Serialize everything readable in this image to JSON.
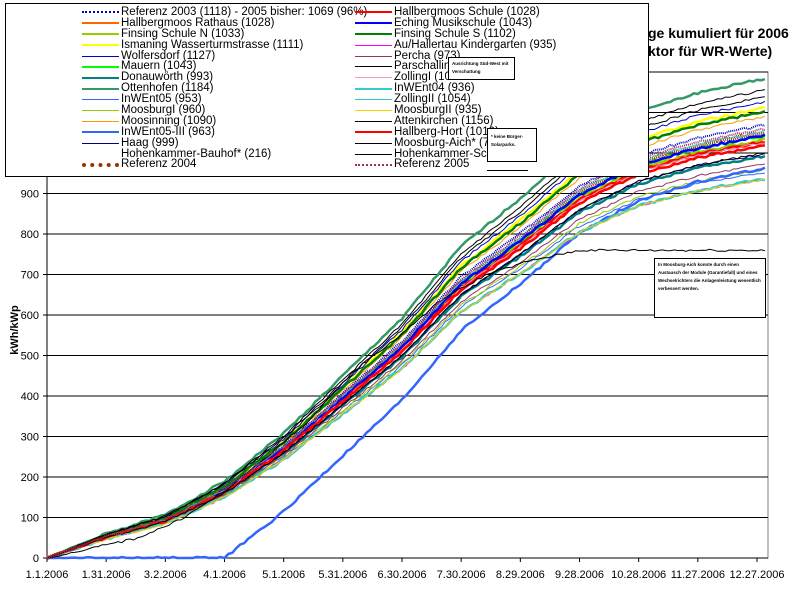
{
  "chart_data": {
    "type": "line",
    "title_visible_part_1": "ge kumuliert für 2006",
    "title_visible_part_2": "ktor für WR-Werte)",
    "ylabel": "kWh/kWp",
    "xlabel": "",
    "ylim": [
      0,
      1200
    ],
    "y_ticks": [
      0,
      100,
      200,
      300,
      400,
      500,
      600,
      700,
      800,
      900
    ],
    "x_tick_labels": [
      "1.1.2006",
      "1.31.2006",
      "3.2.2006",
      "4.1.2006",
      "5.1.2006",
      "5.31.2006",
      "6.30.2006",
      "7.30.2006",
      "8.29.2006",
      "9.28.2006",
      "10.28.2006",
      "11.27.2006",
      "12.27.2006"
    ],
    "x_tick_days": [
      0,
      30,
      60,
      90,
      120,
      150,
      180,
      210,
      240,
      270,
      300,
      330,
      360
    ],
    "grid": "horizontal",
    "legend_placement": "top-left",
    "cumulative_profile_days": [
      0,
      30,
      60,
      90,
      120,
      150,
      180,
      210,
      240,
      270,
      300,
      330,
      364
    ],
    "cumulative_profile_fraction": [
      0,
      0.05,
      0.09,
      0.16,
      0.26,
      0.38,
      0.5,
      0.65,
      0.75,
      0.86,
      0.93,
      0.97,
      1.0
    ],
    "series": [
      {
        "name": "Referenz 2003 (1118) - 2005 bisher: 1069 (96%)",
        "color": "#0000cc",
        "style": "dotted",
        "final": 1069
      },
      {
        "name": "Hallbergmoos Rathaus (1028)",
        "color": "#ff6600",
        "style": "thick",
        "final": 1028
      },
      {
        "name": "Finsing Schule N (1033)",
        "color": "#99cc00",
        "style": "thick",
        "final": 1033
      },
      {
        "name": "Ismaning Wasserturmstrasse (1111)",
        "color": "#ffff00",
        "style": "thick",
        "final": 1111
      },
      {
        "name": "Wolfersdorf (1127)",
        "color": "#0000cc",
        "style": "thin",
        "final": 1127
      },
      {
        "name": "Mauern (1043)",
        "color": "#00ff00",
        "style": "thick",
        "final": 1043
      },
      {
        "name": "Donauwörth (993)",
        "color": "#008080",
        "style": "thick",
        "final": 993
      },
      {
        "name": "Ottenhofen (1184)",
        "color": "#339966",
        "style": "thick",
        "final": 1184
      },
      {
        "name": "InWEnt05 (953)",
        "color": "#3366ff",
        "style": "thin",
        "final": 953
      },
      {
        "name": "MoosburgI (960)",
        "color": "#99cc00",
        "style": "thin",
        "final": 960
      },
      {
        "name": "Moosinning (1090)",
        "color": "#ff9900",
        "style": "thin",
        "final": 1090
      },
      {
        "name": "InWEnt05-III (963)",
        "color": "#3366ff",
        "style": "thick",
        "final": 963,
        "start_day": 90
      },
      {
        "name": "Haag (999)",
        "color": "#000080",
        "style": "thin",
        "final": 999
      },
      {
        "name": "Hohenkammer-Bauhof* (216)",
        "color": "none",
        "style": "none",
        "final": 216
      },
      {
        "name": "Referenz 2004",
        "color": "#993300",
        "style": "dotted-thick",
        "final": 1050
      },
      {
        "name": "Hallbergmoos Schule (1028)",
        "color": "#ff0000",
        "style": "thick",
        "final": 1028
      },
      {
        "name": "Eching Musikschule (1043)",
        "color": "#0000ff",
        "style": "thick",
        "final": 1043
      },
      {
        "name": "Finsing Schule S (1102)",
        "color": "#008000",
        "style": "thick",
        "final": 1102
      },
      {
        "name": "Au/Hallertau Kindergarten (935)",
        "color": "#ff00ff",
        "style": "thin",
        "final": 935
      },
      {
        "name": "Percha (973)",
        "color": "#993366",
        "style": "thin",
        "final": 973
      },
      {
        "name": "Parschalling",
        "color": "#000000",
        "style": "thin",
        "final": 1140
      },
      {
        "name": "ZollingI (102",
        "color": "#ff99cc",
        "style": "thin",
        "final": 1026
      },
      {
        "name": "InWEnt04 (936)",
        "color": "#33cccc",
        "style": "thick",
        "final": 936
      },
      {
        "name": "ZollingII (1054)",
        "color": "#33cccc",
        "style": "thin",
        "final": 1054
      },
      {
        "name": "MoosburgII (935)",
        "color": "#ffcc00",
        "style": "thin",
        "final": 935
      },
      {
        "name": "Attenkirchen (1156)",
        "color": "#000000",
        "style": "thin",
        "final": 1156
      },
      {
        "name": "Hallberg-Hort (1019)",
        "color": "#ff0000",
        "style": "marker",
        "final": 1019
      },
      {
        "name": "Moosburg-Aich* (76",
        "color": "#000000",
        "style": "thin",
        "final": 760,
        "shape": "late",
        "end_day": 270
      },
      {
        "name": "Hohenkammer-Schu",
        "color": "#000000",
        "style": "thin",
        "final": 1000
      },
      {
        "name": "Referenz 2005",
        "color": "#993366",
        "style": "dotted",
        "final": 1060
      }
    ],
    "annotations": [
      "Ausrichtung Süd-West mit Verschattung",
      "* keine Bürger-Solarparks.",
      "In Moosburg-Aich konnte durch einen Austausch der Module (Garantiefall) und eines Wechselrichters die Anlagenleistung wesentlich verbessert werden."
    ]
  }
}
